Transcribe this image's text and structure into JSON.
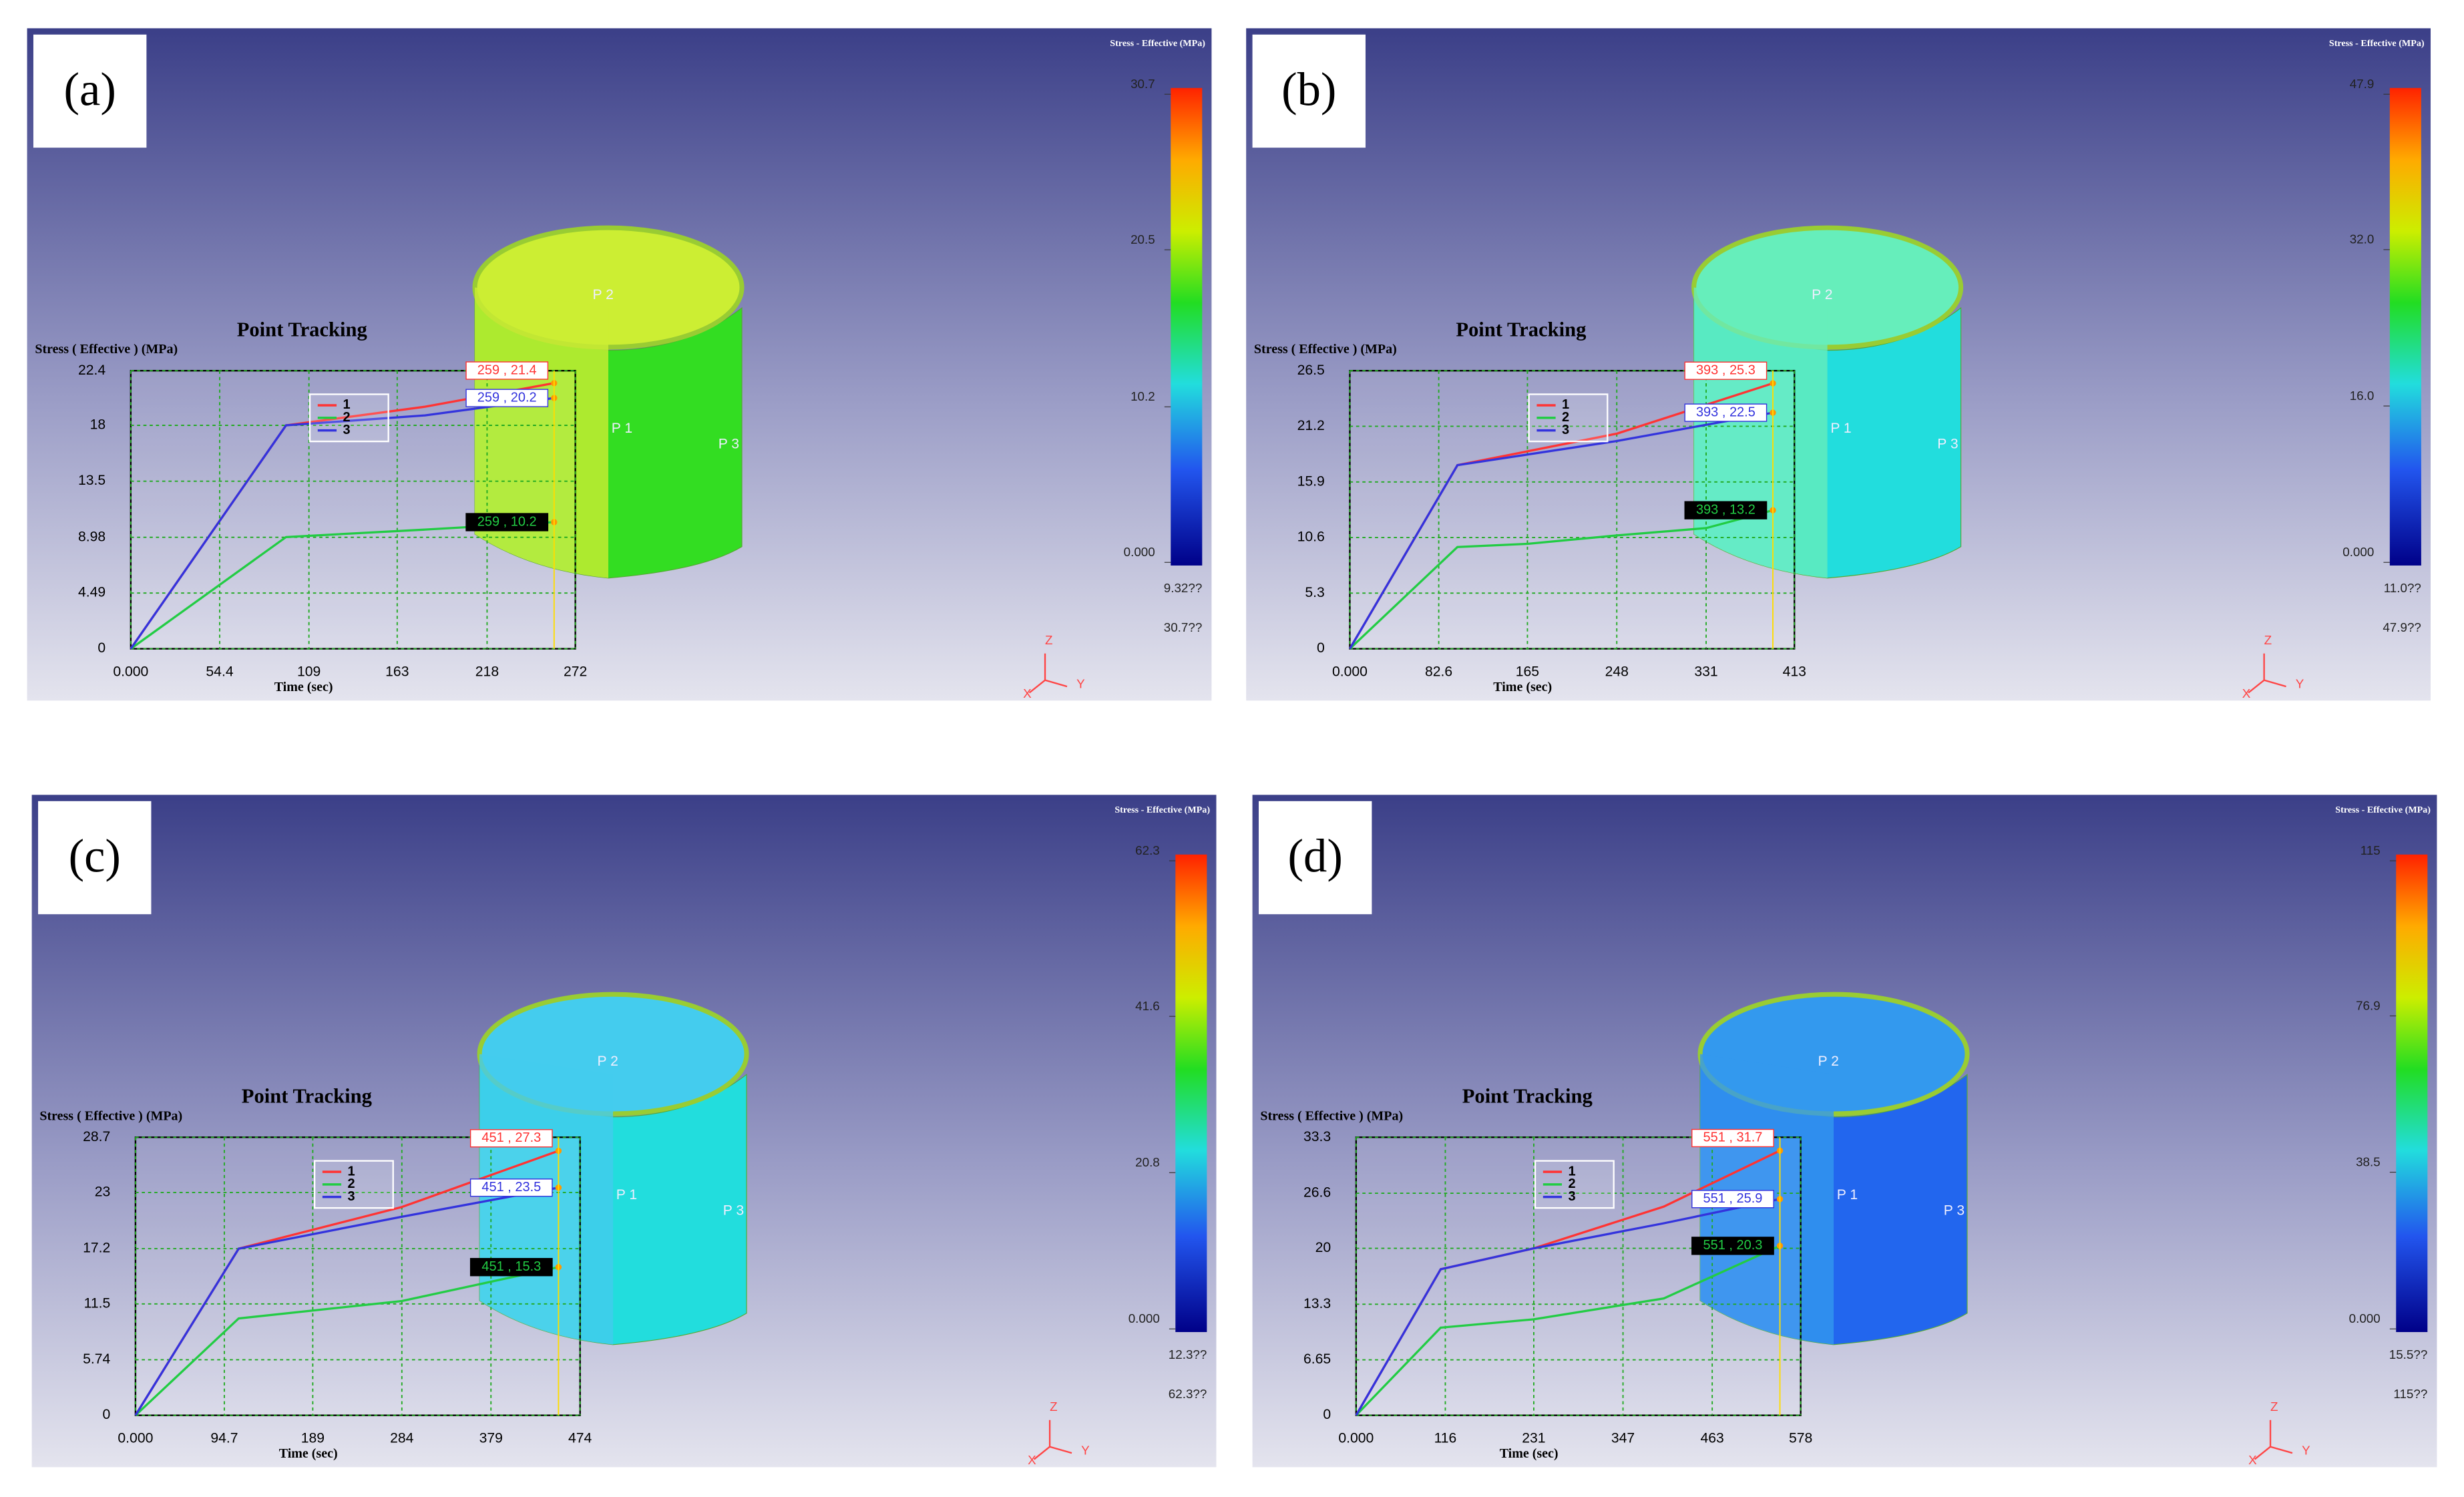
{
  "chart_data": [
    {
      "type": "line",
      "panel_label": "(a)",
      "title": "Point Tracking",
      "y_label": "Stress ( Effective )  (MPa)",
      "x_label": "Time (sec)",
      "xlim": [
        0,
        272
      ],
      "xticks": [
        {
          "value": 0,
          "label": "0.000"
        },
        54.4,
        109,
        163,
        218,
        272
      ],
      "ylim": [
        0,
        22.4
      ],
      "yticks": [
        0,
        4.49,
        8.98,
        13.5,
        18,
        22.4
      ],
      "grid": true,
      "series": [
        {
          "name": "1",
          "color": "#ff3333",
          "x": [
            0,
            95,
            180,
            259
          ],
          "values": [
            0,
            18,
            19.5,
            21.4
          ],
          "end_label": "259 , 21.4"
        },
        {
          "name": "2",
          "color": "#22cc44",
          "x": [
            0,
            95,
            180,
            259
          ],
          "values": [
            0,
            9,
            9.6,
            10.2
          ],
          "end_label": "259 , 10.2"
        },
        {
          "name": "3",
          "color": "#3333dd",
          "x": [
            0,
            95,
            180,
            259
          ],
          "values": [
            0,
            18,
            18.8,
            20.2
          ],
          "end_label": "259 , 20.2"
        }
      ],
      "colorbar_title": "Stress - Effective (MPa)",
      "colorbar_lim": [
        0,
        30.7
      ],
      "colorbar_ticks": [
        {
          "value": 0,
          "label": "0.000"
        },
        10.2,
        20.5,
        30.7
      ],
      "colorbar_notes": [
        "9.32??",
        "30.7??"
      ],
      "point_labels": [
        "P 1",
        "P 2",
        "P 3"
      ],
      "axis_labels": [
        "X",
        "Y",
        "Z"
      ]
    },
    {
      "type": "line",
      "panel_label": "(b)",
      "title": "Point Tracking",
      "y_label": "Stress ( Effective )  (MPa)",
      "x_label": "Time (sec)",
      "xlim": [
        0,
        413
      ],
      "xticks": [
        {
          "value": 0,
          "label": "0.000"
        },
        82.6,
        165,
        248,
        331,
        413
      ],
      "ylim": [
        0,
        26.5
      ],
      "yticks": [
        0,
        5.3,
        10.6,
        15.9,
        21.2,
        26.5
      ],
      "grid": true,
      "series": [
        {
          "name": "1",
          "color": "#ff3333",
          "x": [
            0,
            100,
            248,
            393
          ],
          "values": [
            0,
            17.5,
            20.5,
            25.3
          ],
          "end_label": "393 , 25.3"
        },
        {
          "name": "2",
          "color": "#22cc44",
          "x": [
            0,
            100,
            165,
            248,
            331,
            393
          ],
          "values": [
            0,
            9.7,
            10,
            10.8,
            11.5,
            13.2
          ],
          "end_label": "393 , 13.2"
        },
        {
          "name": "3",
          "color": "#3333dd",
          "x": [
            0,
            100,
            248,
            393
          ],
          "values": [
            0,
            17.5,
            19.8,
            22.5
          ],
          "end_label": "393 , 22.5"
        }
      ],
      "colorbar_title": "Stress - Effective (MPa)",
      "colorbar_lim": [
        0,
        47.9
      ],
      "colorbar_ticks": [
        {
          "value": 0,
          "label": "0.000"
        },
        {
          "value": 16,
          "label": "16.0"
        },
        {
          "value": 32,
          "label": "32.0"
        },
        47.9
      ],
      "colorbar_notes": [
        "11.0??",
        "47.9??"
      ],
      "point_labels": [
        "P 1",
        "P 2",
        "P 3"
      ],
      "axis_labels": [
        "X",
        "Y",
        "Z"
      ]
    },
    {
      "type": "line",
      "panel_label": "(c)",
      "title": "Point Tracking",
      "y_label": "Stress ( Effective )  (MPa)",
      "x_label": "Time (sec)",
      "xlim": [
        0,
        474
      ],
      "xticks": [
        {
          "value": 0,
          "label": "0.000"
        },
        94.7,
        189,
        284,
        379,
        474
      ],
      "ylim": [
        0,
        28.7
      ],
      "yticks": [
        0,
        5.74,
        11.5,
        17.2,
        23,
        28.7
      ],
      "grid": true,
      "series": [
        {
          "name": "1",
          "color": "#ff3333",
          "x": [
            0,
            110,
            284,
            451
          ],
          "values": [
            0,
            17.2,
            21.5,
            27.3
          ],
          "end_label": "451 , 27.3"
        },
        {
          "name": "2",
          "color": "#22cc44",
          "x": [
            0,
            110,
            284,
            451
          ],
          "values": [
            0,
            10,
            11.8,
            15.3
          ],
          "end_label": "451 , 15.3"
        },
        {
          "name": "3",
          "color": "#3333dd",
          "x": [
            0,
            110,
            284,
            451
          ],
          "values": [
            0,
            17.2,
            20.5,
            23.5
          ],
          "end_label": "451 , 23.5"
        }
      ],
      "colorbar_title": "Stress - Effective (MPa)",
      "colorbar_lim": [
        0,
        62.3
      ],
      "colorbar_ticks": [
        {
          "value": 0,
          "label": "0.000"
        },
        20.8,
        41.6,
        62.3
      ],
      "colorbar_notes": [
        "12.3??",
        "62.3??"
      ],
      "point_labels": [
        "P 1",
        "P 2",
        "P 3"
      ],
      "axis_labels": [
        "X",
        "Y",
        "Z"
      ]
    },
    {
      "type": "line",
      "panel_label": "(d)",
      "title": "Point Tracking",
      "y_label": "Stress ( Effective )  (MPa)",
      "x_label": "Time (sec)",
      "xlim": [
        0,
        578
      ],
      "xticks": [
        {
          "value": 0,
          "label": "0.000"
        },
        116,
        231,
        347,
        463,
        578
      ],
      "ylim": [
        0,
        33.3
      ],
      "yticks": [
        0,
        6.65,
        13.3,
        20,
        26.6,
        33.3
      ],
      "grid": true,
      "series": [
        {
          "name": "1",
          "color": "#ff3333",
          "x": [
            0,
            110,
            231,
            400,
            551
          ],
          "values": [
            0,
            17.5,
            20,
            25,
            31.7
          ],
          "end_label": "551 , 31.7"
        },
        {
          "name": "2",
          "color": "#22cc44",
          "x": [
            0,
            110,
            231,
            400,
            551
          ],
          "values": [
            0,
            10.5,
            11.5,
            14,
            20.3
          ],
          "end_label": "551 , 20.3"
        },
        {
          "name": "3",
          "color": "#3333dd",
          "x": [
            0,
            110,
            231,
            400,
            551
          ],
          "values": [
            0,
            17.5,
            20,
            23,
            25.9
          ],
          "end_label": "551 , 25.9"
        }
      ],
      "colorbar_title": "Stress - Effective (MPa)",
      "colorbar_lim": [
        0,
        115
      ],
      "colorbar_ticks": [
        {
          "value": 0,
          "label": "0.000"
        },
        38.5,
        76.9,
        115
      ],
      "colorbar_notes": [
        "15.5??",
        "115??"
      ],
      "point_labels": [
        "P 1",
        "P 2",
        "P 3"
      ],
      "axis_labels": [
        "X",
        "Y",
        "Z"
      ]
    }
  ]
}
